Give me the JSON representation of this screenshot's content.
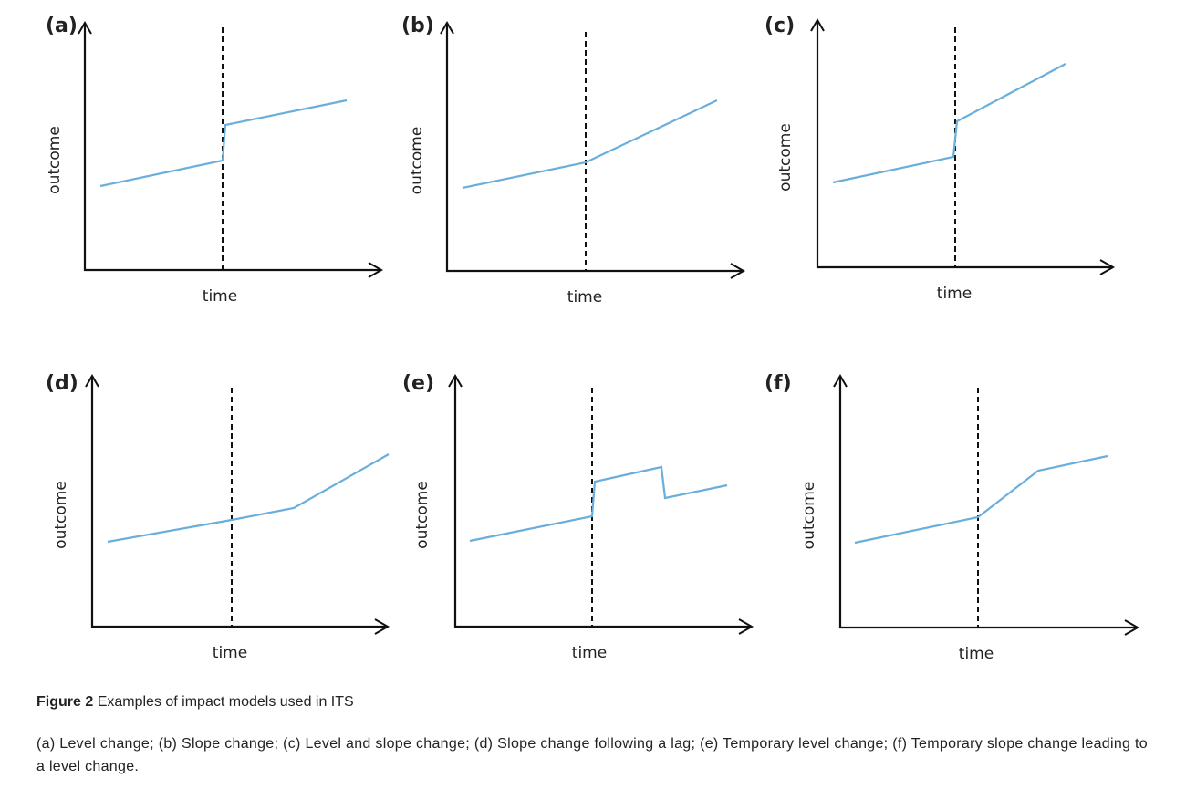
{
  "panels": [
    {
      "label": "(a)",
      "x_label": "time",
      "y_label": "outcome"
    },
    {
      "label": "(b)",
      "x_label": "time",
      "y_label": "outcome"
    },
    {
      "label": "(c)",
      "x_label": "time",
      "y_label": "outcome"
    },
    {
      "label": "(d)",
      "x_label": "time",
      "y_label": "outcome"
    },
    {
      "label": "(e)",
      "x_label": "time",
      "y_label": "outcome"
    },
    {
      "label": "(f)",
      "x_label": "time",
      "y_label": "outcome"
    }
  ],
  "caption": {
    "figure_label": "Figure 2",
    "title": "Examples of impact models used in ITS",
    "description": "(a) Level change; (b) Slope change; (c) Level and slope change; (d) Slope change following a lag; (e) Temporary level change; (f) Temporary slope change leading to a level change."
  }
}
